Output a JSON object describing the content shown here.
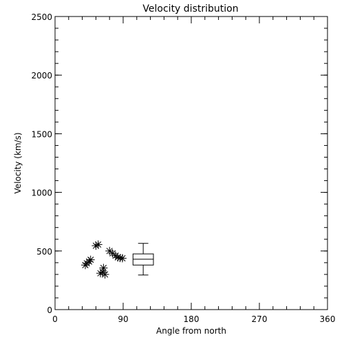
{
  "chart_data": {
    "type": "scatter",
    "title": "Velocity distribution",
    "xlabel": "Angle from north",
    "ylabel": "Velocity (km/s)",
    "xlim": [
      0,
      360
    ],
    "ylim": [
      0,
      2500
    ],
    "xticks": [
      "0",
      "90",
      "180",
      "270",
      "360"
    ],
    "yticks": [
      "0",
      "500",
      "1000",
      "1500",
      "2000",
      "2500"
    ],
    "grid": false,
    "marker": "asterisk",
    "color": "#000000",
    "points": [
      {
        "x": 40,
        "y": 380
      },
      {
        "x": 42,
        "y": 395
      },
      {
        "x": 45,
        "y": 410
      },
      {
        "x": 47,
        "y": 425
      },
      {
        "x": 54,
        "y": 545
      },
      {
        "x": 57,
        "y": 555
      },
      {
        "x": 60,
        "y": 310
      },
      {
        "x": 63,
        "y": 320
      },
      {
        "x": 64,
        "y": 355
      },
      {
        "x": 66,
        "y": 300
      },
      {
        "x": 72,
        "y": 500
      },
      {
        "x": 76,
        "y": 480
      },
      {
        "x": 80,
        "y": 460
      },
      {
        "x": 83,
        "y": 445
      },
      {
        "x": 86,
        "y": 440
      },
      {
        "x": 89,
        "y": 438
      }
    ],
    "boxplot": {
      "x_range": [
        103,
        130
      ],
      "whisker_low": 295,
      "q1": 380,
      "median": 430,
      "q3": 475,
      "whisker_high": 565
    }
  }
}
